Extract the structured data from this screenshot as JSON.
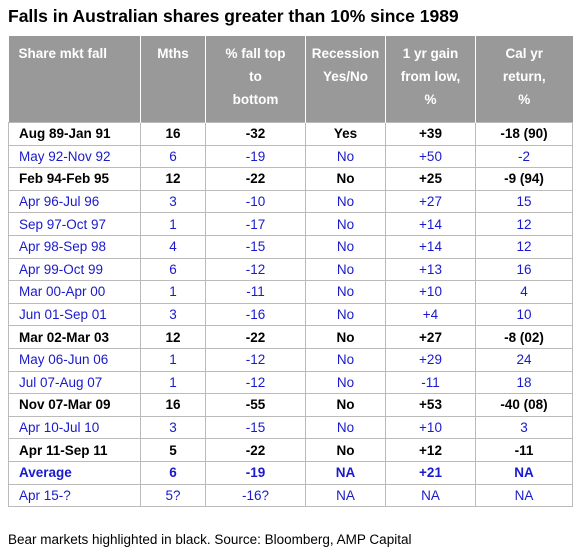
{
  "title": "Falls in Australian shares greater than 10% since 1989",
  "table": {
    "header": [
      [
        "Share mkt fall"
      ],
      [
        "Mths"
      ],
      [
        "% fall top",
        "to",
        "bottom"
      ],
      [
        "Recession",
        "Yes/No"
      ],
      [
        "1 yr gain",
        "from low,",
        "%"
      ],
      [
        "Cal yr",
        "return,",
        "%"
      ]
    ],
    "rows": [
      [
        "Aug 89-Jan 91",
        "16",
        "-32",
        "Yes",
        "+39",
        "-18 (90)"
      ],
      [
        "May 92-Nov 92",
        "6",
        "-19",
        "No",
        "+50",
        "-2"
      ],
      [
        "Feb 94-Feb 95",
        "12",
        "-22",
        "No",
        "+25",
        "-9 (94)"
      ],
      [
        "Apr 96-Jul 96",
        "3",
        "-10",
        "No",
        "+27",
        "15"
      ],
      [
        "Sep 97-Oct 97",
        "1",
        "-17",
        "No",
        "+14",
        "12"
      ],
      [
        "Apr 98-Sep 98",
        "4",
        "-15",
        "No",
        "+14",
        "12"
      ],
      [
        "Apr 99-Oct 99",
        "6",
        "-12",
        "No",
        "+13",
        "16"
      ],
      [
        "Mar 00-Apr 00",
        "1",
        "-11",
        "No",
        "+10",
        "4"
      ],
      [
        "Jun 01-Sep 01",
        "3",
        "-16",
        "No",
        "+4",
        "10"
      ],
      [
        "Mar 02-Mar 03",
        "12",
        "-22",
        "No",
        "+27",
        "-8 (02)"
      ],
      [
        "May 06-Jun 06",
        "1",
        "-12",
        "No",
        "+29",
        "24"
      ],
      [
        "Jul 07-Aug 07",
        "1",
        "-12",
        "No",
        "-11",
        "18"
      ],
      [
        "Nov 07-Mar 09",
        "16",
        "-55",
        "No",
        "+53",
        "-40 (08)"
      ],
      [
        "Apr 10-Jul 10",
        "3",
        "-15",
        "No",
        "+10",
        "3"
      ],
      [
        "Apr 11-Sep 11",
        "5",
        "-22",
        "No",
        "+12",
        "-11"
      ],
      [
        "Average",
        "6",
        "-19",
        "NA",
        "+21",
        "NA"
      ],
      [
        "Apr 15-?",
        "5?",
        "-16?",
        "NA",
        "NA",
        "NA"
      ]
    ]
  },
  "footnote": "Bear markets highlighted in black. Source: Bloomberg, AMP Capital"
}
